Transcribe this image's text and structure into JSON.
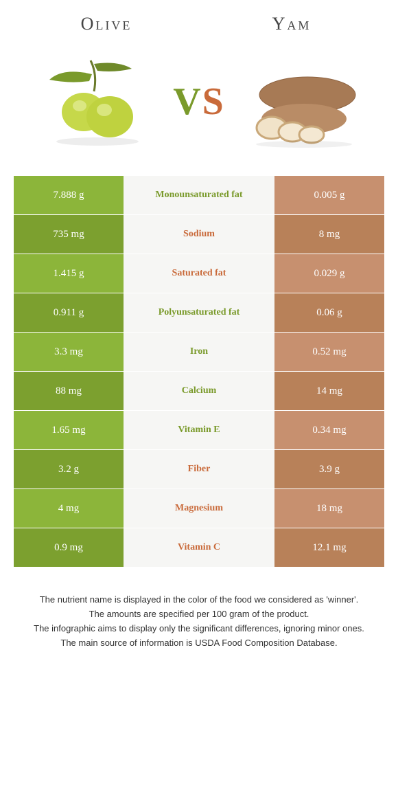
{
  "header": {
    "left_title": "Olive",
    "right_title": "Yam",
    "vs_v": "V",
    "vs_s": "S"
  },
  "colors": {
    "olive": "#8cb53a",
    "olive_dark": "#7ca02f",
    "yam": "#c7906f",
    "yam_dark": "#b88159",
    "name_olive": "#7a9a2b",
    "name_yam": "#c96a3a",
    "mid_bg": "#f6f6f4"
  },
  "rows": [
    {
      "name": "Monounsaturated fat",
      "left": "7.888 g",
      "right": "0.005 g",
      "winner": "olive"
    },
    {
      "name": "Sodium",
      "left": "735 mg",
      "right": "8 mg",
      "winner": "yam"
    },
    {
      "name": "Saturated fat",
      "left": "1.415 g",
      "right": "0.029 g",
      "winner": "yam"
    },
    {
      "name": "Polyunsaturated fat",
      "left": "0.911 g",
      "right": "0.06 g",
      "winner": "olive"
    },
    {
      "name": "Iron",
      "left": "3.3 mg",
      "right": "0.52 mg",
      "winner": "olive"
    },
    {
      "name": "Calcium",
      "left": "88 mg",
      "right": "14 mg",
      "winner": "olive"
    },
    {
      "name": "Vitamin E",
      "left": "1.65 mg",
      "right": "0.34 mg",
      "winner": "olive"
    },
    {
      "name": "Fiber",
      "left": "3.2 g",
      "right": "3.9 g",
      "winner": "yam"
    },
    {
      "name": "Magnesium",
      "left": "4 mg",
      "right": "18 mg",
      "winner": "yam"
    },
    {
      "name": "Vitamin C",
      "left": "0.9 mg",
      "right": "12.1 mg",
      "winner": "yam"
    }
  ],
  "footnotes": [
    "The nutrient name is displayed in the color of the food we considered as 'winner'.",
    "The amounts are specified per 100 gram of the product.",
    "The infographic aims to display only the significant differences, ignoring minor ones.",
    "The main source of information is USDA Food Composition Database."
  ]
}
